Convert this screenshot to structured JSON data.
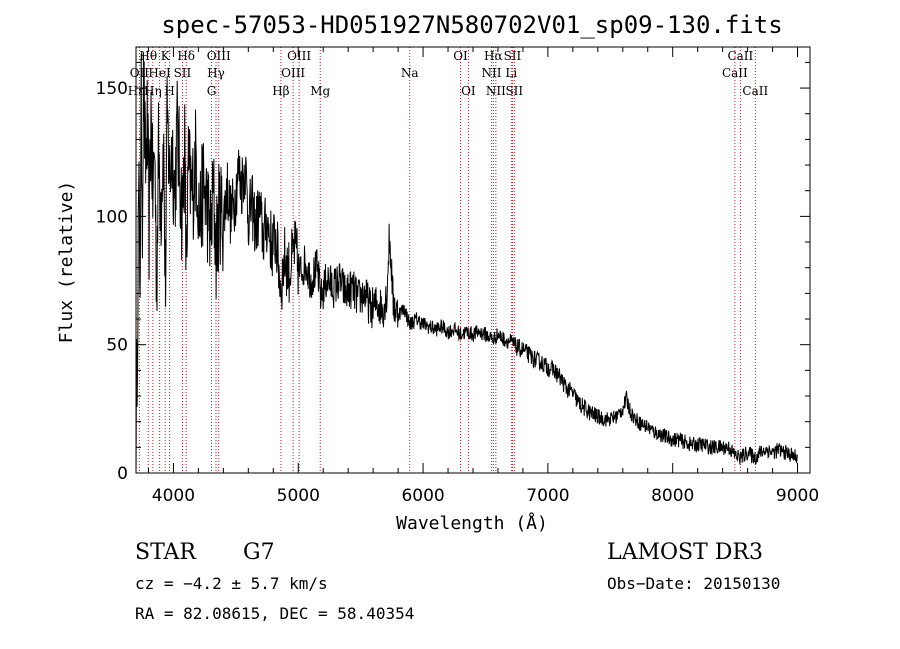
{
  "chart_data": {
    "type": "line",
    "title": "spec-57053-HD051927N580702V01_sp09-130.fits",
    "xlabel": "Wavelength (Å)",
    "ylabel": "Flux (relative)",
    "xlim": [
      3700,
      9100
    ],
    "ylim": [
      0,
      166
    ],
    "xticks": [
      4000,
      5000,
      6000,
      7000,
      8000,
      9000
    ],
    "yticks": [
      0,
      50,
      100,
      150
    ],
    "anchors": [
      [
        3700,
        5
      ],
      [
        3712,
        60
      ],
      [
        3722,
        110
      ],
      [
        3732,
        75
      ],
      [
        3742,
        142
      ],
      [
        3752,
        100
      ],
      [
        3760,
        158
      ],
      [
        3775,
        118
      ],
      [
        3790,
        135
      ],
      [
        3805,
        95
      ],
      [
        3820,
        140
      ],
      [
        3835,
        108
      ],
      [
        3850,
        128
      ],
      [
        3865,
        72
      ],
      [
        3880,
        125
      ],
      [
        3900,
        105
      ],
      [
        3920,
        130
      ],
      [
        3935,
        70
      ],
      [
        3950,
        138
      ],
      [
        3970,
        115
      ],
      [
        3990,
        128
      ],
      [
        4010,
        108
      ],
      [
        4030,
        134
      ],
      [
        4050,
        118
      ],
      [
        4070,
        100
      ],
      [
        4090,
        126
      ],
      [
        4102,
        80
      ],
      [
        4120,
        118
      ],
      [
        4150,
        108
      ],
      [
        4180,
        124
      ],
      [
        4210,
        98
      ],
      [
        4240,
        112
      ],
      [
        4270,
        104
      ],
      [
        4300,
        92
      ],
      [
        4320,
        110
      ],
      [
        4340,
        86
      ],
      [
        4370,
        104
      ],
      [
        4400,
        98
      ],
      [
        4430,
        112
      ],
      [
        4460,
        100
      ],
      [
        4490,
        106
      ],
      [
        4520,
        118
      ],
      [
        4545,
        112
      ],
      [
        4575,
        120
      ],
      [
        4600,
        100
      ],
      [
        4630,
        104
      ],
      [
        4660,
        96
      ],
      [
        4690,
        102
      ],
      [
        4720,
        92
      ],
      [
        4750,
        98
      ],
      [
        4790,
        88
      ],
      [
        4820,
        92
      ],
      [
        4861,
        72
      ],
      [
        4890,
        84
      ],
      [
        4930,
        78
      ],
      [
        4970,
        88
      ],
      [
        5010,
        78
      ],
      [
        5060,
        82
      ],
      [
        5100,
        75
      ],
      [
        5150,
        80
      ],
      [
        5183,
        68
      ],
      [
        5230,
        76
      ],
      [
        5280,
        72
      ],
      [
        5330,
        75
      ],
      [
        5380,
        70
      ],
      [
        5430,
        72
      ],
      [
        5480,
        68
      ],
      [
        5530,
        70
      ],
      [
        5580,
        64
      ],
      [
        5630,
        66
      ],
      [
        5680,
        64
      ],
      [
        5710,
        70
      ],
      [
        5730,
        92
      ],
      [
        5745,
        82
      ],
      [
        5760,
        66
      ],
      [
        5800,
        62
      ],
      [
        5850,
        64
      ],
      [
        5893,
        58
      ],
      [
        5950,
        60
      ],
      [
        6000,
        58
      ],
      [
        6050,
        57
      ],
      [
        6100,
        56
      ],
      [
        6150,
        57
      ],
      [
        6200,
        55
      ],
      [
        6250,
        56
      ],
      [
        6300,
        54
      ],
      [
        6350,
        55
      ],
      [
        6400,
        54
      ],
      [
        6450,
        55
      ],
      [
        6500,
        54
      ],
      [
        6563,
        52
      ],
      [
        6600,
        54
      ],
      [
        6650,
        52
      ],
      [
        6700,
        51
      ],
      [
        6750,
        49
      ],
      [
        6800,
        48
      ],
      [
        6850,
        46
      ],
      [
        6900,
        44
      ],
      [
        6950,
        43
      ],
      [
        7000,
        41
      ],
      [
        7050,
        40
      ],
      [
        7100,
        37
      ],
      [
        7150,
        33
      ],
      [
        7200,
        31
      ],
      [
        7250,
        27
      ],
      [
        7300,
        25
      ],
      [
        7350,
        23
      ],
      [
        7400,
        22
      ],
      [
        7450,
        21
      ],
      [
        7500,
        21
      ],
      [
        7550,
        22
      ],
      [
        7600,
        25
      ],
      [
        7630,
        29
      ],
      [
        7660,
        24
      ],
      [
        7700,
        21
      ],
      [
        7750,
        19
      ],
      [
        7800,
        18
      ],
      [
        7850,
        16
      ],
      [
        7900,
        15
      ],
      [
        7950,
        14
      ],
      [
        8000,
        13
      ],
      [
        8050,
        13
      ],
      [
        8100,
        12
      ],
      [
        8150,
        11
      ],
      [
        8200,
        11
      ],
      [
        8250,
        11
      ],
      [
        8300,
        10
      ],
      [
        8350,
        10
      ],
      [
        8400,
        10
      ],
      [
        8450,
        10
      ],
      [
        8498,
        7
      ],
      [
        8542,
        6
      ],
      [
        8600,
        8
      ],
      [
        8662,
        6
      ],
      [
        8700,
        8
      ],
      [
        8750,
        9
      ],
      [
        8800,
        8
      ],
      [
        8850,
        9
      ],
      [
        8900,
        8
      ],
      [
        8950,
        7
      ],
      [
        9000,
        6
      ]
    ],
    "lines": [
      {
        "name": "Hε",
        "wl": 3701,
        "row": 3
      },
      {
        "name": "OII",
        "wl": 3727,
        "row": 2
      },
      {
        "name": "Hθ",
        "wl": 3798,
        "row": 1
      },
      {
        "name": "Hη",
        "wl": 3835,
        "row": 3
      },
      {
        "name": "HeI",
        "wl": 3889,
        "row": 2
      },
      {
        "name": "K",
        "wl": 3934,
        "row": 1
      },
      {
        "name": "H",
        "wl": 3969,
        "row": 3
      },
      {
        "name": "SII",
        "wl": 4072,
        "row": 2
      },
      {
        "name": "Hδ",
        "wl": 4102,
        "row": 1
      },
      {
        "name": "G",
        "wl": 4305,
        "row": 3
      },
      {
        "name": "Hγ",
        "wl": 4341,
        "row": 2
      },
      {
        "name": "OIII",
        "wl": 4363,
        "row": 1
      },
      {
        "name": "Hβ",
        "wl": 4861,
        "row": 3
      },
      {
        "name": "OIII",
        "wl": 4959,
        "row": 2
      },
      {
        "name": "OIII",
        "wl": 5007,
        "row": 1
      },
      {
        "name": "Mg",
        "wl": 5176,
        "row": 3
      },
      {
        "name": "Na",
        "wl": 5893,
        "row": 2
      },
      {
        "name": "OI",
        "wl": 6300,
        "row": 1
      },
      {
        "name": "OI",
        "wl": 6363,
        "row": 3
      },
      {
        "name": "NII",
        "wl": 6548,
        "row": 2
      },
      {
        "name": "Hα",
        "wl": 6563,
        "row": 1
      },
      {
        "name": "NII",
        "wl": 6583,
        "row": 3
      },
      {
        "name": "Li",
        "wl": 6707,
        "row": 2
      },
      {
        "name": "SII",
        "wl": 6716,
        "row": 1
      },
      {
        "name": "SII",
        "wl": 6731,
        "row": 3
      },
      {
        "name": "CaII",
        "wl": 8498,
        "row": 2
      },
      {
        "name": "CaII",
        "wl": 8542,
        "row": 1
      },
      {
        "name": "CaII",
        "wl": 8662,
        "row": 3
      }
    ],
    "line_color": "#000000",
    "marker_color": "#b22222"
  },
  "info": {
    "class_label": "STAR",
    "subclass": "G7",
    "survey": "LAMOST DR3",
    "cz": "cz = −4.2 ± 5.7 km/s",
    "obs_date": "Obs−Date: 20150130",
    "radec": "RA =  82.08615, DEC =  58.40354"
  }
}
